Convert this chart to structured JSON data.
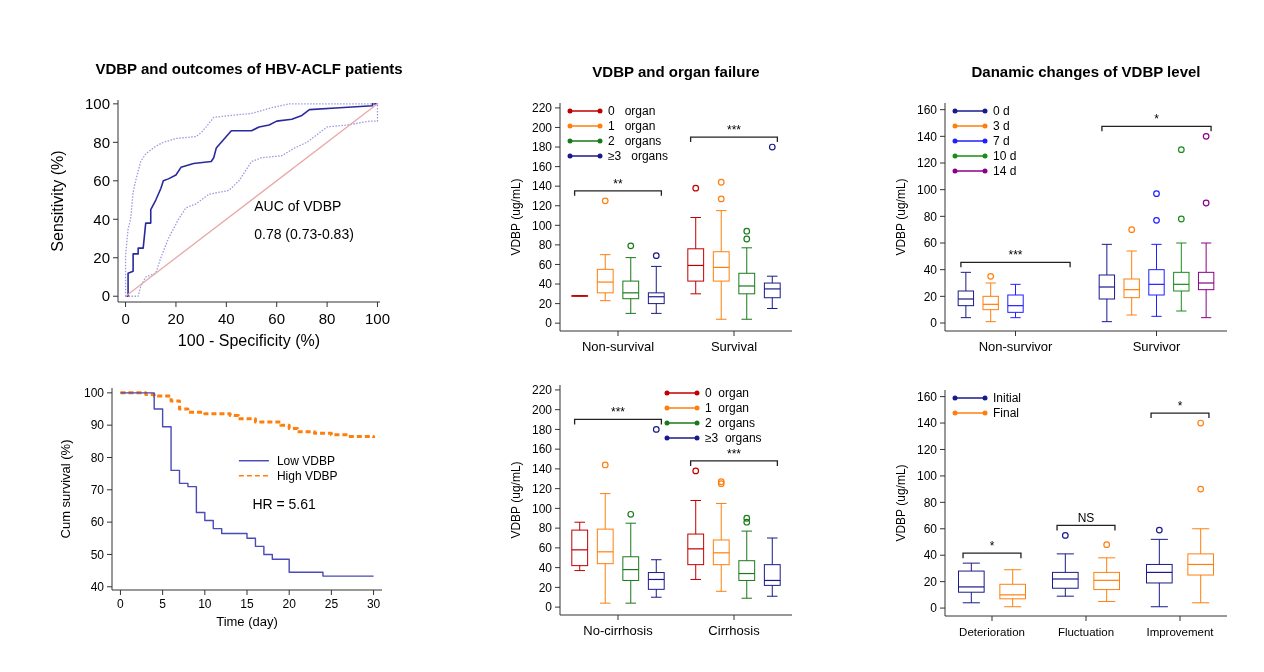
{
  "chart_data": [
    {
      "type": "line",
      "title": "VDBP and outcomes of HBV-ACLF patients",
      "xlabel": "100 - Specificity (%)",
      "ylabel": "Sensitivity (%)",
      "xlim": [
        -3,
        101
      ],
      "ylim": [
        -3,
        102
      ],
      "xticks": [
        0,
        20,
        40,
        60,
        80,
        100
      ],
      "yticks": [
        0,
        20,
        40,
        60,
        80,
        100
      ],
      "series": [
        {
          "color": "#2a2a9e",
          "x": [
            0,
            1,
            1,
            3,
            3,
            5,
            5,
            7,
            8,
            10,
            10,
            12,
            14,
            15,
            17,
            20,
            22,
            27,
            34,
            35,
            36,
            38,
            40,
            42,
            50,
            53,
            57,
            60,
            66,
            70,
            73,
            85,
            98,
            98,
            100
          ],
          "values": [
            0,
            0,
            12,
            13,
            22,
            22,
            25,
            25,
            38,
            38,
            45,
            50,
            56,
            60,
            61,
            63,
            67,
            69,
            70,
            72,
            77,
            80,
            83,
            86,
            86,
            88,
            89,
            91,
            92,
            94,
            97,
            98,
            99,
            100,
            100
          ]
        },
        {
          "color": "#9a9ae0",
          "line_style": "dotted",
          "x": [
            0,
            0,
            1,
            2,
            3,
            4,
            6,
            8,
            12,
            15,
            20,
            28,
            30,
            32,
            35,
            42,
            50,
            58,
            65,
            100
          ],
          "values": [
            0,
            21,
            35,
            40,
            54,
            60,
            70,
            74,
            78,
            80,
            82,
            83,
            85,
            88,
            93,
            94,
            95,
            98,
            100,
            100
          ]
        },
        {
          "color": "#9a9ae0",
          "line_style": "dotted",
          "x": [
            0,
            5,
            6,
            8,
            12,
            14,
            17,
            21,
            24,
            28,
            33,
            41,
            45,
            50,
            54,
            62,
            67,
            72,
            77,
            80,
            88,
            97,
            100,
            100
          ],
          "values": [
            0,
            0,
            5,
            10,
            12,
            20,
            30,
            40,
            46,
            48,
            53,
            55,
            60,
            70,
            72,
            73,
            77,
            80,
            85,
            88,
            89,
            91,
            91,
            100
          ]
        },
        {
          "color": "#e8a8a8",
          "x": [
            0,
            100
          ],
          "values": [
            0,
            100
          ]
        }
      ],
      "annotations": [
        "AUC of VDBP",
        "0.78 (0.73-0.83)"
      ]
    },
    {
      "type": "box",
      "title": "VDBP and organ failure",
      "ylabel": "VDBP (ug/mL)",
      "categories": [
        "Non-survival",
        "Survival"
      ],
      "ylim": [
        -8,
        225
      ],
      "yticks": [
        0,
        20,
        40,
        60,
        80,
        100,
        120,
        140,
        160,
        180,
        200,
        220
      ],
      "legend": "top left",
      "series": [
        {
          "name": "0   organ",
          "color": "#c00000",
          "boxes": [
            {
              "low": 28,
              "q1": 28,
              "median": 28,
              "q3": 28,
              "high": 28
            },
            {
              "low": 30,
              "q1": 43,
              "median": 59,
              "q3": 76,
              "high": 108,
              "outliers": [
                138
              ]
            }
          ]
        },
        {
          "name": "1   organ",
          "color": "#ff7f0e",
          "boxes": [
            {
              "low": 23,
              "q1": 31,
              "median": 42,
              "q3": 55,
              "high": 70,
              "outliers": [
                125
              ]
            },
            {
              "low": 4,
              "q1": 43,
              "median": 57,
              "q3": 73,
              "high": 115,
              "outliers": [
                127,
                144
              ]
            }
          ]
        },
        {
          "name": "2   organs",
          "color": "#1a7a1a",
          "boxes": [
            {
              "low": 10,
              "q1": 25,
              "median": 31,
              "q3": 43,
              "high": 67,
              "outliers": [
                79
              ]
            },
            {
              "low": 4,
              "q1": 30,
              "median": 38,
              "q3": 51,
              "high": 77,
              "outliers": [
                86,
                94
              ]
            }
          ]
        },
        {
          "name": "≥3   organs",
          "color": "#1a1a8c",
          "boxes": [
            {
              "low": 10,
              "q1": 20,
              "median": 27,
              "q3": 31,
              "high": 58,
              "outliers": [
                69
              ]
            },
            {
              "low": 15,
              "q1": 26,
              "median": 35,
              "q3": 41,
              "high": 48,
              "outliers": [
                180
              ]
            }
          ]
        }
      ],
      "annotations": [
        "**",
        "***"
      ]
    },
    {
      "type": "box",
      "title": "Danamic changes of VDBP level",
      "ylabel": "VDBP (ug/mL)",
      "categories": [
        "Non-survivor",
        "Survivor"
      ],
      "ylim": [
        -6,
        165
      ],
      "yticks": [
        0,
        20,
        40,
        60,
        80,
        100,
        120,
        140,
        160
      ],
      "legend": "top left",
      "series": [
        {
          "name": "0 d",
          "color": "#1a1a8c",
          "boxes": [
            {
              "low": 4,
              "q1": 13,
              "median": 18,
              "q3": 24,
              "high": 38
            },
            {
              "low": 1,
              "q1": 18,
              "median": 27,
              "q3": 36,
              "high": 59
            }
          ]
        },
        {
          "name": "3 d",
          "color": "#ff7f0e",
          "boxes": [
            {
              "low": 1,
              "q1": 10,
              "median": 14,
              "q3": 20,
              "high": 30,
              "outliers": [
                35
              ]
            },
            {
              "low": 6,
              "q1": 19,
              "median": 25,
              "q3": 33,
              "high": 54,
              "outliers": [
                70
              ]
            }
          ]
        },
        {
          "name": "7 d",
          "color": "#1f1fff",
          "boxes": [
            {
              "low": 4,
              "q1": 8,
              "median": 13,
              "q3": 21,
              "high": 29
            },
            {
              "low": 5,
              "q1": 21,
              "median": 29,
              "q3": 40,
              "high": 59,
              "outliers": [
                77,
                97
              ]
            }
          ]
        },
        {
          "name": "10 d",
          "color": "#1a8c1a",
          "boxes": [
            null,
            {
              "low": 9,
              "q1": 24,
              "median": 29,
              "q3": 38,
              "high": 60,
              "outliers": [
                78,
                130
              ]
            }
          ]
        },
        {
          "name": "14 d",
          "color": "#8b008b",
          "boxes": [
            null,
            {
              "low": 4,
              "q1": 25,
              "median": 30,
              "q3": 38,
              "high": 60,
              "outliers": [
                90,
                140
              ]
            }
          ]
        }
      ],
      "annotations": [
        "***",
        "*"
      ]
    },
    {
      "type": "step",
      "xlabel": "Time (day)",
      "ylabel": "Cum survival (%)",
      "xlim": [
        -1,
        31
      ],
      "ylim": [
        39,
        101.5
      ],
      "xticks": [
        0,
        5,
        10,
        15,
        20,
        25,
        30
      ],
      "yticks": [
        40,
        50,
        60,
        70,
        80,
        90,
        100
      ],
      "legend": "right",
      "series": [
        {
          "name": "Low VDBP",
          "color": "#4a4ab8",
          "x": [
            0,
            4,
            5,
            6,
            7,
            8,
            9,
            10,
            11,
            12,
            15,
            16,
            17,
            18,
            20,
            24,
            30
          ],
          "values": [
            100,
            95,
            89.5,
            76,
            72,
            71,
            63,
            60.5,
            58,
            56.5,
            55,
            52.5,
            50,
            48.5,
            44.5,
            43.3,
            43.3
          ]
        },
        {
          "name": "High VDBP",
          "color": "#ff7f0e",
          "line_style": "dashed",
          "x": [
            0,
            3,
            4,
            6,
            7,
            8,
            10,
            13,
            14,
            16,
            19,
            20,
            21,
            23,
            25,
            27,
            30
          ],
          "values": [
            100,
            99.5,
            99,
            97.5,
            95,
            94,
            93.5,
            93,
            92,
            91,
            90,
            89,
            88,
            87.5,
            87,
            86.5,
            86
          ]
        }
      ],
      "annotations": [
        "HR = 5.61"
      ]
    },
    {
      "type": "box",
      "ylabel": "VDBP (ug/mL)",
      "categories": [
        "No-cirrhosis",
        "Cirrhosis"
      ],
      "ylim": [
        -8,
        225
      ],
      "yticks": [
        0,
        20,
        40,
        60,
        80,
        100,
        120,
        140,
        160,
        180,
        200,
        220
      ],
      "legend": "top right",
      "series": [
        {
          "name": "0  organ",
          "color": "#c00000",
          "boxes": [
            {
              "low": 37,
              "q1": 42,
              "median": 58,
              "q3": 78,
              "high": 86
            },
            {
              "low": 28,
              "q1": 43,
              "median": 59,
              "q3": 74,
              "high": 108,
              "outliers": [
                138
              ]
            }
          ]
        },
        {
          "name": "1  organ",
          "color": "#ff7f0e",
          "boxes": [
            {
              "low": 4,
              "q1": 44,
              "median": 56,
              "q3": 79,
              "high": 115,
              "outliers": [
                144
              ]
            },
            {
              "low": 16,
              "q1": 43,
              "median": 55,
              "q3": 68,
              "high": 105,
              "outliers": [
                125,
                127
              ]
            }
          ]
        },
        {
          "name": "2  organs",
          "color": "#1a7a1a",
          "boxes": [
            {
              "low": 4,
              "q1": 27,
              "median": 38,
              "q3": 51,
              "high": 85,
              "outliers": [
                94
              ]
            },
            {
              "low": 9,
              "q1": 27,
              "median": 34,
              "q3": 47,
              "high": 77,
              "outliers": [
                86,
                90
              ]
            }
          ]
        },
        {
          "name": "≥3  organs",
          "color": "#1a1a8c",
          "boxes": [
            {
              "low": 10,
              "q1": 18,
              "median": 28,
              "q3": 35,
              "high": 48,
              "outliers": [
                180
              ]
            },
            {
              "low": 11,
              "q1": 22,
              "median": 27,
              "q3": 43,
              "high": 70
            }
          ]
        }
      ],
      "annotations": [
        "***",
        "***"
      ]
    },
    {
      "type": "box",
      "ylabel": "VDBP (ug/mL)",
      "categories": [
        "Deterioration",
        "Fluctuation",
        "Improvement"
      ],
      "ylim": [
        -6,
        165
      ],
      "yticks": [
        0,
        20,
        40,
        60,
        80,
        100,
        120,
        140,
        160
      ],
      "legend": "top left",
      "series": [
        {
          "name": "Initial",
          "color": "#1a1a8c",
          "boxes": [
            {
              "low": 4,
              "q1": 12,
              "median": 16,
              "q3": 28,
              "high": 34
            },
            {
              "low": 9,
              "q1": 15,
              "median": 22,
              "q3": 27,
              "high": 41,
              "outliers": [
                55
              ]
            },
            {
              "low": 1,
              "q1": 19,
              "median": 27,
              "q3": 33,
              "high": 52,
              "outliers": [
                59
              ]
            }
          ]
        },
        {
          "name": "Final",
          "color": "#ff7f0e",
          "boxes": [
            {
              "low": 1,
              "q1": 7,
              "median": 10,
              "q3": 18,
              "high": 29
            },
            {
              "low": 5,
              "q1": 14,
              "median": 21,
              "q3": 27,
              "high": 38,
              "outliers": [
                48
              ]
            },
            {
              "low": 4,
              "q1": 25,
              "median": 33,
              "q3": 41,
              "high": 60,
              "outliers": [
                90,
                140
              ]
            }
          ]
        }
      ],
      "annotations": [
        "*",
        "NS",
        "*"
      ]
    }
  ]
}
